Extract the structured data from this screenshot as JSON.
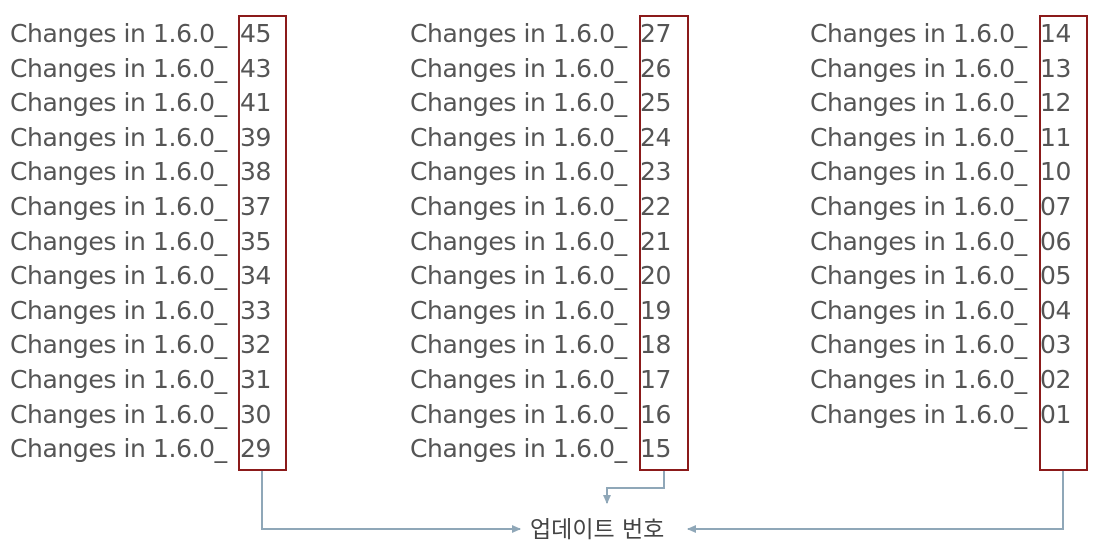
{
  "columns": [
    {
      "rows": [
        {
          "prefix": "Changes in 1.6.0_",
          "num": "45"
        },
        {
          "prefix": "Changes in 1.6.0_",
          "num": "43"
        },
        {
          "prefix": "Changes in 1.6.0_",
          "num": "41"
        },
        {
          "prefix": "Changes in 1.6.0_",
          "num": "39"
        },
        {
          "prefix": "Changes in 1.6.0_",
          "num": "38"
        },
        {
          "prefix": "Changes in 1.6.0_",
          "num": "37"
        },
        {
          "prefix": "Changes in 1.6.0_",
          "num": "35"
        },
        {
          "prefix": "Changes in 1.6.0_",
          "num": "34"
        },
        {
          "prefix": "Changes in 1.6.0_",
          "num": "33"
        },
        {
          "prefix": "Changes in 1.6.0_",
          "num": "32"
        },
        {
          "prefix": "Changes in 1.6.0_",
          "num": "31"
        },
        {
          "prefix": "Changes in 1.6.0_",
          "num": "30"
        },
        {
          "prefix": "Changes in 1.6.0_",
          "num": "29"
        }
      ]
    },
    {
      "rows": [
        {
          "prefix": "Changes in 1.6.0_",
          "num": "27"
        },
        {
          "prefix": "Changes in 1.6.0_",
          "num": "26"
        },
        {
          "prefix": "Changes in 1.6.0_",
          "num": "25"
        },
        {
          "prefix": "Changes in 1.6.0_",
          "num": "24"
        },
        {
          "prefix": "Changes in 1.6.0_",
          "num": "23"
        },
        {
          "prefix": "Changes in 1.6.0_",
          "num": "22"
        },
        {
          "prefix": "Changes in 1.6.0_",
          "num": "21"
        },
        {
          "prefix": "Changes in 1.6.0_",
          "num": "20"
        },
        {
          "prefix": "Changes in 1.6.0_",
          "num": "19"
        },
        {
          "prefix": "Changes in 1.6.0_",
          "num": "18"
        },
        {
          "prefix": "Changes in 1.6.0_",
          "num": "17"
        },
        {
          "prefix": "Changes in 1.6.0_",
          "num": "16"
        },
        {
          "prefix": "Changes in 1.6.0_",
          "num": "15"
        }
      ]
    },
    {
      "rows": [
        {
          "prefix": "Changes in 1.6.0_",
          "num": "14"
        },
        {
          "prefix": "Changes in 1.6.0_",
          "num": "13"
        },
        {
          "prefix": "Changes in 1.6.0_",
          "num": "12"
        },
        {
          "prefix": "Changes in 1.6.0_",
          "num": "11"
        },
        {
          "prefix": "Changes in 1.6.0_",
          "num": "10"
        },
        {
          "prefix": "Changes in 1.6.0_",
          "num": "07"
        },
        {
          "prefix": "Changes in 1.6.0_",
          "num": "06"
        },
        {
          "prefix": "Changes in 1.6.0_",
          "num": "05"
        },
        {
          "prefix": "Changes in 1.6.0_",
          "num": "04"
        },
        {
          "prefix": "Changes in 1.6.0_",
          "num": "03"
        },
        {
          "prefix": "Changes in 1.6.0_",
          "num": "02"
        },
        {
          "prefix": "Changes in 1.6.0_",
          "num": "01"
        }
      ]
    }
  ],
  "caption": "업데이트 번호",
  "colors": {
    "text": "#555555",
    "highlight_box": "#8b1a1a",
    "connector": "#8fa7b8",
    "caption": "#444444"
  }
}
